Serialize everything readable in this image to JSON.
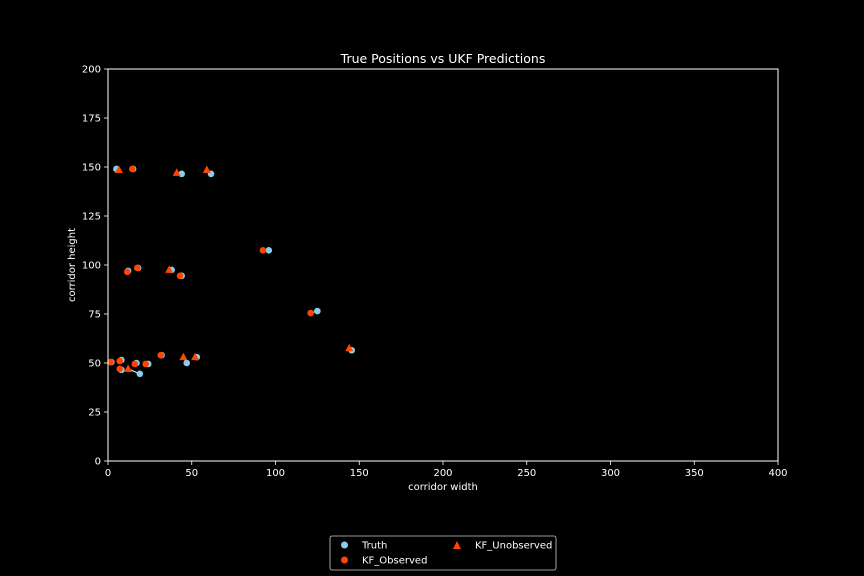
{
  "chart_data": {
    "type": "scatter",
    "title": "True Positions vs UKF Predictions",
    "xlabel": "corridor width",
    "ylabel": "corridor height",
    "xlim": [
      0,
      400
    ],
    "ylim": [
      0,
      200
    ],
    "xticks": [
      0,
      50,
      100,
      150,
      200,
      250,
      300,
      350,
      400
    ],
    "yticks": [
      0,
      25,
      50,
      75,
      100,
      125,
      150,
      175,
      200
    ],
    "grid": false,
    "legend_position": "bottom-center",
    "colors": {
      "background": "#000000",
      "truth": "#87ceeb",
      "observed": "#ff4500",
      "unobserved": "#ff4500",
      "connector": "#ffffff"
    },
    "series": [
      {
        "name": "Truth",
        "marker": "circle",
        "points": [
          [
            5,
            149
          ],
          [
            15,
            149
          ],
          [
            44,
            146.5
          ],
          [
            61.5,
            146.5
          ],
          [
            96,
            107.5
          ],
          [
            125,
            76.5
          ],
          [
            145.5,
            56.5
          ],
          [
            12,
            97
          ],
          [
            18,
            98.5
          ],
          [
            38,
            97.5
          ],
          [
            44,
            94.5
          ],
          [
            8,
            51.5
          ],
          [
            8,
            46.5
          ],
          [
            19,
            44.5
          ],
          [
            17,
            50
          ],
          [
            24,
            49.5
          ],
          [
            32,
            54
          ],
          [
            47,
            50
          ],
          [
            53,
            53
          ],
          [
            2,
            50.5
          ]
        ]
      },
      {
        "name": "KF_Observed",
        "marker": "circle",
        "points": [
          [
            14.5,
            149
          ],
          [
            92.5,
            107.5
          ],
          [
            121,
            75.5
          ],
          [
            11.5,
            96.5
          ],
          [
            17.5,
            98.5
          ],
          [
            43,
            94.5
          ],
          [
            7,
            51
          ],
          [
            7,
            47
          ],
          [
            16,
            49.5
          ],
          [
            22.5,
            49.5
          ],
          [
            31.5,
            54
          ],
          [
            1.5,
            50.5
          ]
        ]
      },
      {
        "name": "KF_Unobserved",
        "marker": "triangle",
        "points": [
          [
            6.5,
            148.5
          ],
          [
            41,
            147
          ],
          [
            59,
            148.5
          ],
          [
            144,
            57.5
          ],
          [
            36.5,
            97.5
          ],
          [
            45,
            53
          ],
          [
            52,
            53
          ],
          [
            12,
            47
          ]
        ]
      }
    ],
    "connectors": [
      [
        [
          5,
          149
        ],
        [
          6.5,
          148.5
        ]
      ],
      [
        [
          15,
          149
        ],
        [
          14.5,
          149
        ]
      ],
      [
        [
          44,
          146.5
        ],
        [
          41,
          147
        ]
      ],
      [
        [
          61.5,
          146.5
        ],
        [
          59,
          148.5
        ]
      ],
      [
        [
          96,
          107.5
        ],
        [
          92.5,
          107.5
        ]
      ],
      [
        [
          125,
          76.5
        ],
        [
          121,
          75.5
        ]
      ],
      [
        [
          145.5,
          56.5
        ],
        [
          144,
          57.5
        ]
      ],
      [
        [
          12,
          97
        ],
        [
          11.5,
          96.5
        ]
      ],
      [
        [
          18,
          98.5
        ],
        [
          17.5,
          98.5
        ]
      ],
      [
        [
          38,
          97.5
        ],
        [
          36.5,
          97.5
        ]
      ],
      [
        [
          44,
          94.5
        ],
        [
          43,
          94.5
        ]
      ],
      [
        [
          8,
          51.5
        ],
        [
          7,
          51
        ]
      ],
      [
        [
          8,
          46.5
        ],
        [
          7,
          47
        ]
      ],
      [
        [
          19,
          44.5
        ],
        [
          12,
          47
        ]
      ],
      [
        [
          17,
          50
        ],
        [
          16,
          49.5
        ]
      ],
      [
        [
          24,
          49.5
        ],
        [
          22.5,
          49.5
        ]
      ],
      [
        [
          32,
          54
        ],
        [
          31.5,
          54
        ]
      ],
      [
        [
          47,
          50
        ],
        [
          45,
          53
        ]
      ],
      [
        [
          53,
          53
        ],
        [
          52,
          53
        ]
      ],
      [
        [
          2,
          50.5
        ],
        [
          1.5,
          50.5
        ]
      ]
    ]
  }
}
